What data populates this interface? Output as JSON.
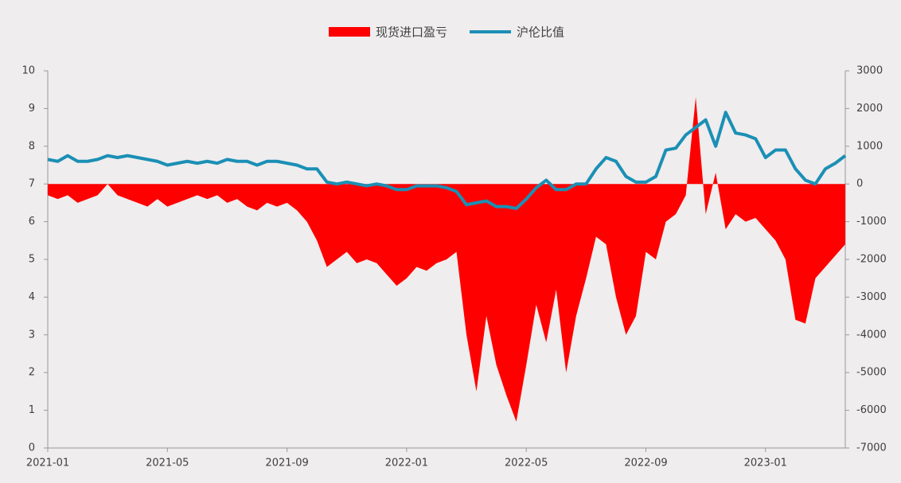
{
  "chart_data": {
    "type": "line",
    "categories": [
      "2021-01",
      null,
      null,
      null,
      null,
      null,
      null,
      null,
      null,
      null,
      null,
      null,
      "2021-05",
      null,
      null,
      null,
      null,
      null,
      null,
      null,
      null,
      null,
      null,
      null,
      "2021-09",
      null,
      null,
      null,
      null,
      null,
      null,
      null,
      null,
      null,
      null,
      null,
      "2022-01",
      null,
      null,
      null,
      null,
      null,
      null,
      null,
      null,
      null,
      null,
      null,
      "2022-05",
      null,
      null,
      null,
      null,
      null,
      null,
      null,
      null,
      null,
      null,
      null,
      "2022-09",
      null,
      null,
      null,
      null,
      null,
      null,
      null,
      null,
      null,
      null,
      null,
      "2023-01",
      null,
      null,
      null,
      null,
      null,
      null,
      null,
      null
    ],
    "series": [
      {
        "name": "现货进口盈亏",
        "color": "#ff0000",
        "axis": "y2",
        "type": "area",
        "values": [
          -300,
          -400,
          -300,
          -500,
          -400,
          -300,
          0,
          -300,
          -400,
          -500,
          -600,
          -400,
          -600,
          -500,
          -400,
          -300,
          -400,
          -300,
          -500,
          -400,
          -600,
          -700,
          -500,
          -600,
          -500,
          -700,
          -1000,
          -1500,
          -2200,
          -2000,
          -1800,
          -2100,
          -2000,
          -2100,
          -2400,
          -2700,
          -2500,
          -2200,
          -2300,
          -2100,
          -2000,
          -1800,
          -4000,
          -5500,
          -3500,
          -4800,
          -5600,
          -6300,
          -4800,
          -3200,
          -4200,
          -2800,
          -5000,
          -3500,
          -2500,
          -1400,
          -1600,
          -3000,
          -4000,
          -3500,
          -1800,
          -2000,
          -1000,
          -800,
          -300,
          2300,
          -800,
          300,
          -1200,
          -800,
          -1000,
          -900,
          -1200,
          -1500,
          -2000,
          -3600,
          -3700,
          -2500,
          -2200,
          -1900,
          -1600
        ]
      },
      {
        "name": "沪伦比值",
        "color": "#1b8fb5",
        "type": "line",
        "values": [
          7.65,
          7.6,
          7.75,
          7.6,
          7.6,
          7.65,
          7.75,
          7.7,
          7.75,
          7.7,
          7.65,
          7.6,
          7.5,
          7.55,
          7.6,
          7.55,
          7.6,
          7.55,
          7.65,
          7.6,
          7.6,
          7.5,
          7.6,
          7.6,
          7.55,
          7.5,
          7.4,
          7.4,
          7.05,
          7.0,
          7.05,
          7.0,
          6.95,
          7.0,
          6.95,
          6.85,
          6.85,
          6.95,
          6.95,
          6.95,
          6.9,
          6.8,
          6.45,
          6.5,
          6.55,
          6.4,
          6.4,
          6.35,
          6.6,
          6.9,
          7.1,
          6.85,
          6.85,
          7.0,
          7.0,
          7.4,
          7.7,
          7.6,
          7.2,
          7.05,
          7.05,
          7.2,
          7.9,
          7.95,
          8.3,
          8.5,
          8.7,
          8.0,
          8.9,
          8.35,
          8.3,
          8.2,
          7.7,
          7.9,
          7.9,
          7.4,
          7.1,
          7.0,
          7.4,
          7.55,
          7.75
        ]
      }
    ],
    "ylim": [
      0,
      10
    ],
    "yticks": [
      0,
      1,
      2,
      3,
      4,
      5,
      6,
      7,
      8,
      9,
      10
    ],
    "y2lim": [
      -7000,
      3000
    ],
    "y2ticks": [
      -7000,
      -6000,
      -5000,
      -4000,
      -3000,
      -2000,
      -1000,
      0,
      1000,
      2000,
      3000
    ],
    "legend": "top"
  }
}
